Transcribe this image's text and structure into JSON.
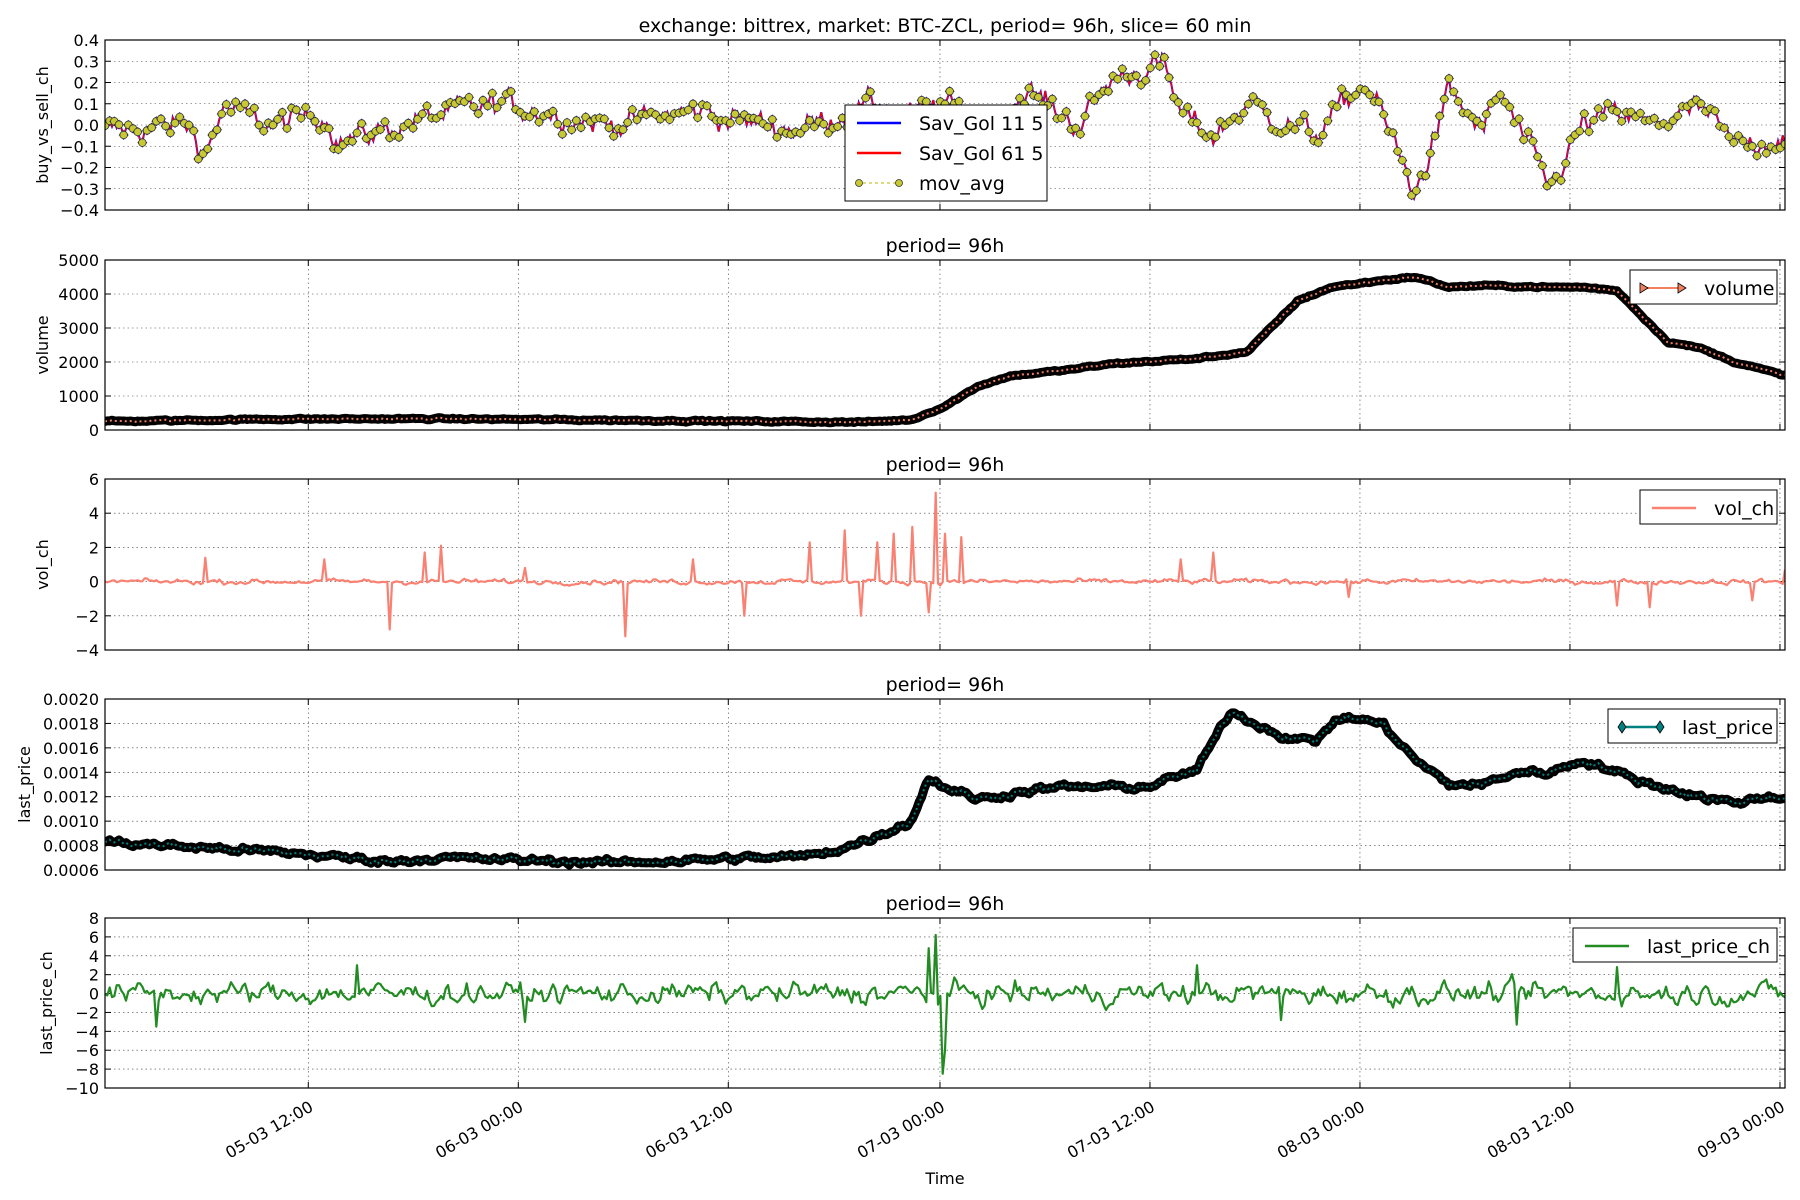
{
  "figure": {
    "xlabel": "Time"
  },
  "chart_data": [
    {
      "type": "line",
      "title": "exchange: bittrex,   market: BTC-ZCL,    period= 96h,    slice= 60 min",
      "ylabel": "buy_vs_sell_ch",
      "ylim": [
        -0.4,
        0.4
      ],
      "yticks": [
        "0.4",
        "0.3",
        "0.2",
        "0.1",
        "0.0",
        "−0.1",
        "−0.2",
        "−0.3",
        "−0.4"
      ],
      "ytick_values": [
        0.4,
        0.3,
        0.2,
        0.1,
        0.0,
        -0.1,
        -0.2,
        -0.3,
        -0.4
      ],
      "legend_location": "center",
      "series": [
        {
          "name": "Sav_Gol 11 5",
          "color": "#0000ff",
          "style": "line"
        },
        {
          "name": "Sav_Gol 61 5",
          "color": "#ff0000",
          "style": "line"
        },
        {
          "name": "mov_avg",
          "color": "#bfbf00",
          "style": "dashed-circle-markers"
        }
      ],
      "profile_x": [
        0,
        0.05,
        0.06,
        0.07,
        0.1,
        0.13,
        0.14,
        0.2,
        0.24,
        0.3,
        0.33,
        0.36,
        0.37,
        0.41,
        0.44,
        0.46,
        0.48,
        0.5,
        0.52,
        0.55,
        0.58,
        0.6,
        0.63,
        0.64,
        0.66,
        0.68,
        0.7,
        0.72,
        0.74,
        0.75,
        0.76,
        0.78,
        0.8,
        0.82,
        0.83,
        0.86,
        0.88,
        0.9,
        0.92,
        0.95,
        0.97,
        1.0
      ],
      "profile_y": [
        -0.03,
        0.0,
        -0.14,
        0.08,
        0.0,
        0.05,
        -0.08,
        0.05,
        0.1,
        0.0,
        0.04,
        0.07,
        0.03,
        -0.02,
        0.05,
        0.1,
        0.04,
        0.1,
        0.0,
        0.15,
        0.0,
        0.22,
        0.28,
        0.05,
        -0.05,
        0.1,
        0.02,
        -0.05,
        0.12,
        0.2,
        0.05,
        -0.33,
        0.15,
        -0.03,
        0.15,
        -0.3,
        0.0,
        0.05,
        0.0,
        0.08,
        -0.1,
        -0.05
      ],
      "noise": 0.05
    },
    {
      "type": "line",
      "title": "period= 96h",
      "ylabel": "volume",
      "ylim": [
        0,
        5000
      ],
      "yticks": [
        "5000",
        "4000",
        "3000",
        "2000",
        "1000",
        "0"
      ],
      "ytick_values": [
        5000,
        4000,
        3000,
        2000,
        1000,
        0
      ],
      "legend_location": "upper right",
      "series": [
        {
          "name": "volume",
          "color": "#f08060",
          "edge": "#000000",
          "style": "triangle-markers"
        }
      ],
      "profile_x": [
        0,
        0.1,
        0.2,
        0.3,
        0.4,
        0.45,
        0.48,
        0.5,
        0.52,
        0.54,
        0.57,
        0.6,
        0.65,
        0.68,
        0.71,
        0.73,
        0.76,
        0.78,
        0.8,
        0.82,
        0.86,
        0.88,
        0.9,
        0.93,
        0.95,
        0.97,
        1.0
      ],
      "profile_y": [
        250,
        320,
        330,
        290,
        250,
        230,
        300,
        700,
        1300,
        1600,
        1750,
        1950,
        2100,
        2300,
        3800,
        4200,
        4400,
        4500,
        4200,
        4250,
        4200,
        4200,
        4100,
        2600,
        2400,
        2000,
        1600
      ],
      "noise": 20
    },
    {
      "type": "line",
      "title": "period= 96h",
      "ylabel": "vol_ch",
      "ylim": [
        -4,
        6
      ],
      "yticks": [
        "6",
        "4",
        "2",
        "0",
        "−2",
        "−4"
      ],
      "ytick_values": [
        6,
        4,
        2,
        0,
        -2,
        -4
      ],
      "legend_location": "upper right",
      "series": [
        {
          "name": "vol_ch",
          "color": "#fa8072",
          "style": "line"
        }
      ],
      "profile_x": [
        0,
        1
      ],
      "profile_y": [
        0,
        0
      ],
      "noise": 0.12,
      "spikes": [
        [
          0.06,
          1.4
        ],
        [
          0.13,
          1.3
        ],
        [
          0.17,
          -2.8
        ],
        [
          0.19,
          1.7
        ],
        [
          0.2,
          2.1
        ],
        [
          0.25,
          0.8
        ],
        [
          0.31,
          -3.2
        ],
        [
          0.35,
          1.3
        ],
        [
          0.38,
          -2.0
        ],
        [
          0.42,
          2.3
        ],
        [
          0.44,
          3.0
        ],
        [
          0.45,
          -2.0
        ],
        [
          0.46,
          2.3
        ],
        [
          0.47,
          2.8
        ],
        [
          0.48,
          3.2
        ],
        [
          0.49,
          -1.8
        ],
        [
          0.5,
          2.8
        ],
        [
          0.51,
          2.6
        ],
        [
          0.495,
          5.2
        ],
        [
          0.64,
          1.3
        ],
        [
          0.66,
          1.7
        ],
        [
          0.74,
          -0.9
        ],
        [
          0.9,
          -1.4
        ],
        [
          0.92,
          -1.5
        ],
        [
          0.98,
          -1.1
        ],
        [
          1.0,
          0.7
        ]
      ]
    },
    {
      "type": "line",
      "title": "period= 96h",
      "ylabel": "last_price",
      "ylim": [
        0.0006,
        0.002
      ],
      "yticks": [
        "0.0020",
        "0.0018",
        "0.0016",
        "0.0014",
        "0.0012",
        "0.0010",
        "0.0008",
        "0.0006"
      ],
      "ytick_values": [
        0.002,
        0.0018,
        0.0016,
        0.0014,
        0.0012,
        0.001,
        0.0008,
        0.0006
      ],
      "legend_location": "upper right",
      "series": [
        {
          "name": "last_price",
          "color": "#008080",
          "edge": "#000000",
          "style": "diamond-markers"
        }
      ],
      "profile_x": [
        0,
        0.1,
        0.17,
        0.2,
        0.25,
        0.3,
        0.35,
        0.38,
        0.4,
        0.42,
        0.44,
        0.46,
        0.48,
        0.49,
        0.5,
        0.52,
        0.55,
        0.57,
        0.6,
        0.62,
        0.65,
        0.67,
        0.7,
        0.72,
        0.73,
        0.74,
        0.76,
        0.78,
        0.8,
        0.82,
        0.84,
        0.86,
        0.88,
        0.9,
        0.92,
        0.95,
        0.97,
        0.99,
        1.0
      ],
      "profile_y": [
        0.00083,
        0.00075,
        0.00067,
        0.0007,
        0.00068,
        0.00066,
        0.00068,
        0.0007,
        0.0007,
        0.00072,
        0.00078,
        0.00088,
        0.001,
        0.00135,
        0.00128,
        0.00118,
        0.00125,
        0.00128,
        0.00128,
        0.00128,
        0.00142,
        0.0019,
        0.0017,
        0.00165,
        0.0018,
        0.00185,
        0.0018,
        0.0015,
        0.0013,
        0.0013,
        0.0014,
        0.0014,
        0.0015,
        0.0014,
        0.0013,
        0.0012,
        0.00115,
        0.0012,
        0.0012
      ],
      "noise": 2e-05
    },
    {
      "type": "line",
      "title": "period= 96h",
      "ylabel": "last_price_ch",
      "ylim": [
        -10,
        8
      ],
      "yticks": [
        "8",
        "6",
        "4",
        "2",
        "0",
        "−2",
        "−4",
        "−6",
        "−8",
        "−10"
      ],
      "ytick_values": [
        8,
        6,
        4,
        2,
        0,
        -2,
        -4,
        -6,
        -8,
        -10
      ],
      "legend_location": "upper right",
      "series": [
        {
          "name": "last_price_ch",
          "color": "#228b22",
          "style": "line"
        }
      ],
      "profile_x": [
        0,
        1
      ],
      "profile_y": [
        0,
        0
      ],
      "noise": 0.9,
      "spikes": [
        [
          0.495,
          6.2
        ],
        [
          0.498,
          -8.5
        ],
        [
          0.49,
          4.8
        ],
        [
          0.5,
          -6.0
        ],
        [
          0.03,
          -3.5
        ],
        [
          0.15,
          3.0
        ],
        [
          0.25,
          -3.0
        ],
        [
          0.65,
          3.0
        ],
        [
          0.7,
          -2.8
        ],
        [
          0.84,
          -3.3
        ],
        [
          0.9,
          2.8
        ]
      ]
    }
  ],
  "x_axis": {
    "ticks": [
      "05-03 12:00",
      "06-03 00:00",
      "06-03 12:00",
      "07-03 00:00",
      "07-03 12:00",
      "08-03 00:00",
      "08-03 12:00",
      "09-03 00:00"
    ],
    "tick_fractions": [
      0.121,
      0.246,
      0.371,
      0.497,
      0.622,
      0.747,
      0.872,
      0.997
    ]
  }
}
